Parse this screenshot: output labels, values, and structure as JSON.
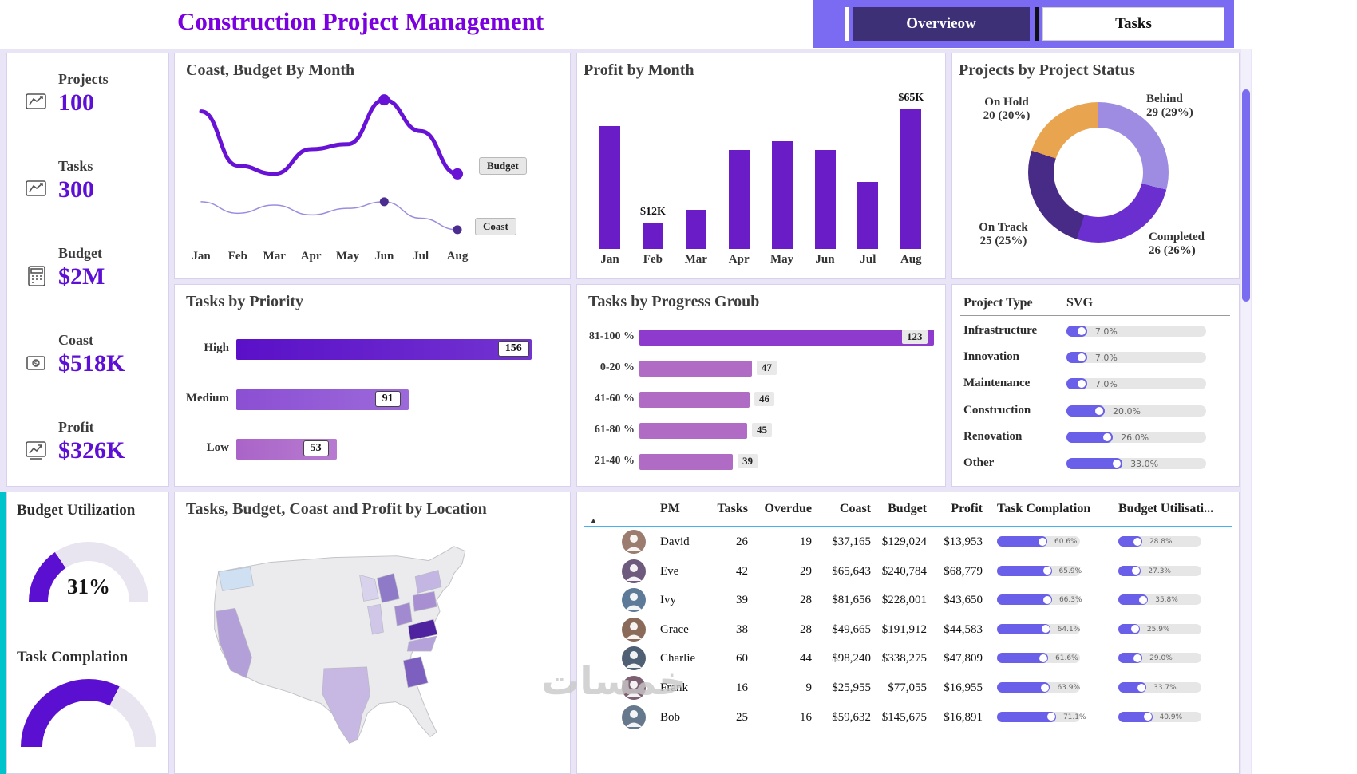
{
  "header": {
    "title": "Construction Project Management",
    "tabs": [
      {
        "label": "Overvieow",
        "active": true
      },
      {
        "label": "Tasks",
        "active": false
      }
    ]
  },
  "sidebar": {
    "kpis": [
      {
        "label": "Projects",
        "value": "100",
        "icon": "line-chart-icon"
      },
      {
        "label": "Tasks",
        "value": "300",
        "icon": "line-chart-icon"
      },
      {
        "label": "Budget",
        "value": "$2M",
        "icon": "calculator-icon"
      },
      {
        "label": "Coast",
        "value": "$518K",
        "icon": "coin-icon"
      },
      {
        "label": "Profit",
        "value": "$326K",
        "icon": "profit-chart-icon"
      }
    ],
    "gauges": [
      {
        "label": "Budget Utilization",
        "value_label": "31%",
        "percent": 31
      },
      {
        "label": "Task Complation",
        "value_label": "",
        "percent": 65
      }
    ]
  },
  "chart_data": [
    {
      "type": "line",
      "title": "Coast, Budget By Month",
      "x": [
        "Jan",
        "Feb",
        "Mar",
        "Apr",
        "May",
        "Jun",
        "Jul",
        "Aug"
      ],
      "series": [
        {
          "name": "Budget",
          "color": "#6812d6",
          "values": [
            90,
            57,
            52,
            67,
            70,
            97,
            78,
            52
          ]
        },
        {
          "name": "Coast",
          "color": "#9c8ce0",
          "values": [
            35,
            28,
            33,
            27,
            31,
            35,
            25,
            18
          ]
        }
      ],
      "ylim": [
        0,
        100
      ],
      "note": "y-axis unlabeled; values are relative estimates from line heights",
      "marker_indices": [
        5,
        7
      ]
    },
    {
      "type": "bar",
      "title": "Profit by Month",
      "categories": [
        "Jan",
        "Feb",
        "Mar",
        "Apr",
        "May",
        "Jun",
        "Jul",
        "Aug"
      ],
      "values": [
        57,
        12,
        18,
        46,
        50,
        46,
        31,
        65
      ],
      "unit": "$K",
      "data_labels": {
        "Feb": "$12K",
        "Aug": "$65K"
      },
      "color": "#6a1cc6",
      "ylim": [
        0,
        70
      ]
    },
    {
      "type": "pie",
      "donut": true,
      "title": "Projects by Project Status",
      "slices": [
        {
          "label": "Behind",
          "value": 29,
          "pct": 29,
          "color": "#9d8ce2"
        },
        {
          "label": "Completed",
          "value": 26,
          "pct": 26,
          "color": "#6b2fd0"
        },
        {
          "label": "On Track",
          "value": 25,
          "pct": 25,
          "color": "#482a87"
        },
        {
          "label": "On Hold",
          "value": 20,
          "pct": 20,
          "color": "#e8a44e"
        }
      ]
    },
    {
      "type": "bar",
      "orientation": "horizontal",
      "title": "Tasks by Priority",
      "categories": [
        "High",
        "Medium",
        "Low"
      ],
      "values": [
        156,
        91,
        53
      ],
      "colors": [
        "#5a10c8",
        "#8b4fd3",
        "#aa64c8"
      ]
    },
    {
      "type": "bar",
      "orientation": "horizontal",
      "title": "Tasks by Progress Groub",
      "categories": [
        "81-100 %",
        "0-20 %",
        "41-60 %",
        "61-80 %",
        "21-40 %"
      ],
      "values": [
        123,
        47,
        46,
        45,
        39
      ],
      "colors": [
        "#8e3bcd",
        "#b06cc4",
        "#b06cc4",
        "#b06cc4",
        "#b06cc4"
      ]
    },
    {
      "type": "table",
      "columns": [
        "Project Type",
        "SVG"
      ],
      "rows": [
        {
          "name": "Infrastructure",
          "pct": 7.0,
          "pct_label": "7.0%"
        },
        {
          "name": "Innovation",
          "pct": 7.0,
          "pct_label": "7.0%"
        },
        {
          "name": "Maintenance",
          "pct": 7.0,
          "pct_label": "7.0%"
        },
        {
          "name": "Construction",
          "pct": 20.0,
          "pct_label": "20.0%"
        },
        {
          "name": "Renovation",
          "pct": 26.0,
          "pct_label": "26.0%"
        },
        {
          "name": "Other",
          "pct": 33.0,
          "pct_label": "33.0%"
        }
      ]
    },
    {
      "type": "map",
      "title": "Tasks, Budget, Coast and Profit by Location",
      "regions": [
        {
          "state": "Washington",
          "color": "#cfe0f2"
        },
        {
          "state": "California",
          "color": "#b3a0d8"
        },
        {
          "state": "Texas",
          "color": "#c7b8e3"
        },
        {
          "state": "Michigan",
          "color": "#8f7ac8"
        },
        {
          "state": "Wisconsin",
          "color": "#d9d2ec"
        },
        {
          "state": "Illinois",
          "color": "#cfc6e8"
        },
        {
          "state": "Ohio",
          "color": "#a28ad0"
        },
        {
          "state": "Pennsylvania",
          "color": "#a78fd2"
        },
        {
          "state": "New York",
          "color": "#c4b6e2"
        },
        {
          "state": "Virginia",
          "color": "#4f22a0"
        },
        {
          "state": "North Carolina",
          "color": "#b5a2da"
        },
        {
          "state": "Georgia",
          "color": "#7d5fc0"
        }
      ]
    },
    {
      "type": "table",
      "sort_indicator": "▲",
      "columns": [
        "PM",
        "Tasks",
        "Overdue",
        "Coast",
        "Budget",
        "Profit",
        "Task Complation",
        "Budget Utilisati..."
      ],
      "rows": [
        {
          "pm": "David",
          "tasks": "26",
          "overdue": "19",
          "coast": "$37,165",
          "budget": "$129,024",
          "profit": "$13,953",
          "task_completion": "60.6%",
          "budget_utilization": "28.8%"
        },
        {
          "pm": "Eve",
          "tasks": "42",
          "overdue": "29",
          "coast": "$65,643",
          "budget": "$240,784",
          "profit": "$68,779",
          "task_completion": "65.9%",
          "budget_utilization": "27.3%"
        },
        {
          "pm": "Ivy",
          "tasks": "39",
          "overdue": "28",
          "coast": "$81,656",
          "budget": "$228,001",
          "profit": "$43,650",
          "task_completion": "66.3%",
          "budget_utilization": "35.8%"
        },
        {
          "pm": "Grace",
          "tasks": "38",
          "overdue": "28",
          "coast": "$49,665",
          "budget": "$191,912",
          "profit": "$44,583",
          "task_completion": "64.1%",
          "budget_utilization": "25.9%"
        },
        {
          "pm": "Charlie",
          "tasks": "60",
          "overdue": "44",
          "coast": "$98,240",
          "budget": "$338,275",
          "profit": "$47,809",
          "task_completion": "61.6%",
          "budget_utilization": "29.0%"
        },
        {
          "pm": "Frank",
          "tasks": "16",
          "overdue": "9",
          "coast": "$25,955",
          "budget": "$77,055",
          "profit": "$16,955",
          "task_completion": "63.9%",
          "budget_utilization": "33.7%"
        },
        {
          "pm": "Bob",
          "tasks": "25",
          "overdue": "16",
          "coast": "$59,632",
          "budget": "$145,675",
          "profit": "$16,891",
          "task_completion": "71.1%",
          "budget_utilization": "40.9%"
        }
      ]
    }
  ],
  "watermark": "خمسات",
  "colors": {
    "title": "#7a00e0",
    "kpi_value": "#5e0fd6",
    "nav_bar": "#7b6bf2",
    "nav_active_bg": "#3e3076",
    "accent_teal": "#00c4cc",
    "pill": "#6a5fe8",
    "board_bg": "#e9e4f6",
    "gauge_fill": "#5b0fd0"
  }
}
